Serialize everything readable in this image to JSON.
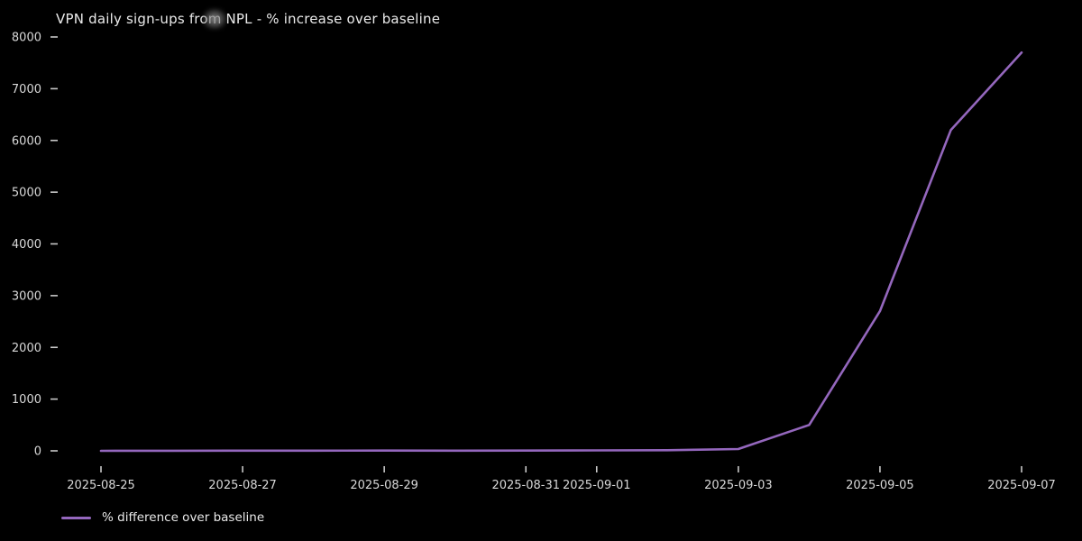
{
  "title": "VPN daily sign-ups from NPL - % increase over baseline",
  "colors": {
    "background": "#000000",
    "title_text": "#ebebeb",
    "tick_text": "#d8d8d8",
    "tick_mark": "#c8c8c8",
    "line": "#9467bd"
  },
  "legend": {
    "label": "% difference over baseline"
  },
  "chart_data": {
    "type": "line",
    "title": "VPN daily sign-ups from NPL - % increase over baseline",
    "xlabel": "",
    "ylabel": "",
    "x": [
      "2025-08-25",
      "2025-08-26",
      "2025-08-27",
      "2025-08-28",
      "2025-08-29",
      "2025-08-30",
      "2025-08-31",
      "2025-09-01",
      "2025-09-02",
      "2025-09-03",
      "2025-09-04",
      "2025-09-05",
      "2025-09-06",
      "2025-09-07"
    ],
    "series": [
      {
        "name": "% difference over baseline",
        "color": "#9467bd",
        "values": [
          0,
          2,
          4,
          3,
          5,
          4,
          6,
          8,
          12,
          35,
          500,
          2700,
          6200,
          7700
        ]
      }
    ],
    "x_tick_labels": [
      "2025-08-25",
      "2025-08-27",
      "2025-08-29",
      "2025-08-31",
      "2025-09-01",
      "2025-09-03",
      "2025-09-05",
      "2025-09-07"
    ],
    "y_ticks": [
      0,
      1000,
      2000,
      3000,
      4000,
      5000,
      6000,
      7000,
      8000
    ],
    "ylim": [
      0,
      8000
    ],
    "grid": false,
    "legend_position": "bottom-left"
  }
}
